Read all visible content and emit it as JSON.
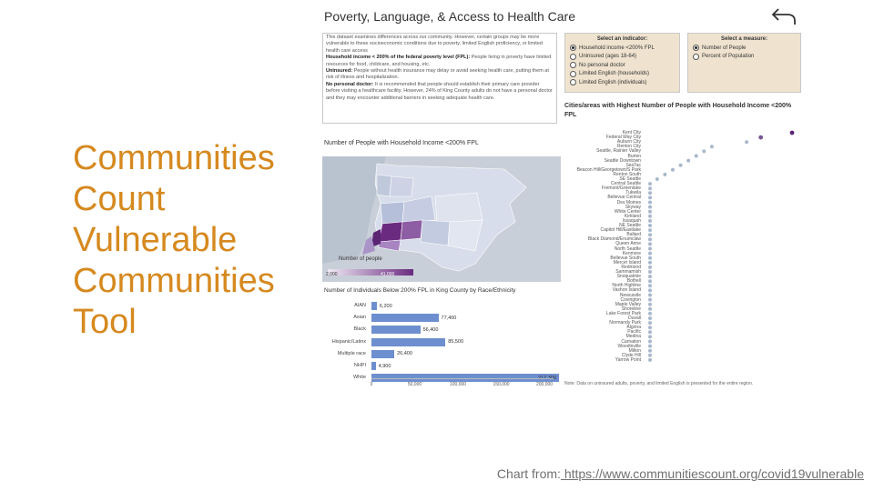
{
  "slide": {
    "title_lines": [
      "Communities",
      "Count",
      "Vulnerable",
      "Communities",
      "Tool"
    ],
    "credit_prefix": "Chart from:",
    "credit_link": " https://www.communitiescount.org/covid19vulnerable"
  },
  "dashboard": {
    "title": "Poverty, Language, & Access to Health Care",
    "back_icon": "undo-arrow-icon",
    "description": [
      {
        "lead": "",
        "text": "This dataset examines differences across our community. However, certain groups may be more vulnerable to these socioeconomic conditions due to poverty, limited English proficiency, or limited health care access"
      },
      {
        "lead": "Household income < 200% of the federal poverty level (FPL):",
        "text": "People living in poverty have limited resources for food, childcare, and housing, etc."
      },
      {
        "lead": "Uninsured:",
        "text": "People without health insurance may delay or avoid seeking health care, putting them at risk of illness and hospitalization."
      },
      {
        "lead": "No personal doctor:",
        "text": "It is recommended that people should establish their primary care provider before visiting a healthcare facility. However, 24% of King County adults do not have a personal doctor and they may encounter additional barriers in seeking adequate health care."
      }
    ],
    "indicator": {
      "heading": "Select an indicator:",
      "options": [
        "Household income <200% FPL",
        "Uninsured (ages 18-64)",
        "No personal doctor",
        "Limited English (households)",
        "Limited English (individuals)"
      ],
      "selected": "Household income <200% FPL"
    },
    "measure": {
      "heading": "Select a measure:",
      "options": [
        "Number of People",
        "Percent of Population"
      ],
      "selected": "Number of People"
    },
    "cities_title": "Cities/areas with Highest Number of People with Household Income <200% FPL",
    "map_title": "Number of People with Household Income <200% FPL",
    "legend_title": "Number of people",
    "legend_min": "2,000",
    "legend_max": "41,000",
    "bars_title": "Number of Individuals Below 200% FPL in King County by Race/Ethnicity",
    "cities": [
      "Kent City",
      "Federal Way City",
      "Auburn City",
      "Renton City",
      "Seattle, Rainier Valley",
      "Burien",
      "Seattle Downtown",
      "SeaTac",
      "Beacon Hill/Georgetown/S Park",
      "Renton South",
      "SE Seattle",
      "Central Seattle",
      "Fremont/Greenlake",
      "Tukwila",
      "Bellevue Central",
      "Des Moines",
      "Skyway",
      "White Center",
      "Kirkland",
      "Issaquah",
      "NE Seattle",
      "Capitol Hill/Eastlake",
      "Ballard",
      "Black Diamond/Enumclaw",
      "Queen Anne",
      "North Seattle",
      "Kenmore",
      "Bellevue South",
      "Mercer Island",
      "Redmond",
      "Sammamish",
      "Snoqualmie",
      "Bothell",
      "North Highline",
      "Vashon Island",
      "Newcastle",
      "Covington",
      "Maple Valley",
      "Shoreline",
      "Lake Forest Park",
      "Duvall",
      "Normandy Park",
      "Algona",
      "Pacific",
      "Medina",
      "Carnation",
      "Woodinville",
      "Milton",
      "Clyde Hill",
      "Yarrow Point"
    ],
    "footnote": "Note: Data on uninsured adults, poverty, and limited English is presented for the entire region."
  },
  "chart_data": {
    "type": "bar",
    "orientation": "horizontal",
    "title": "Number of Individuals Below 200% FPL in King County by Race/Ethnicity",
    "categories": [
      "AIAN",
      "Asian",
      "Black",
      "Hispanic/Latinx",
      "Multiple race",
      "NHPI",
      "White"
    ],
    "values": [
      6200,
      77400,
      56400,
      85500,
      26400,
      4900,
      217300
    ],
    "value_labels": [
      "6,200",
      "77,400",
      "56,400",
      "85,500",
      "26,400",
      "4,900",
      "217,300"
    ],
    "xlim": [
      0,
      200000
    ],
    "ticks": [
      "0",
      "50,000",
      "100,000",
      "150,000",
      "200,000"
    ],
    "tick_values": [
      0,
      50000,
      100000,
      150000,
      200000
    ],
    "bar_color": "#6e8fcf"
  }
}
